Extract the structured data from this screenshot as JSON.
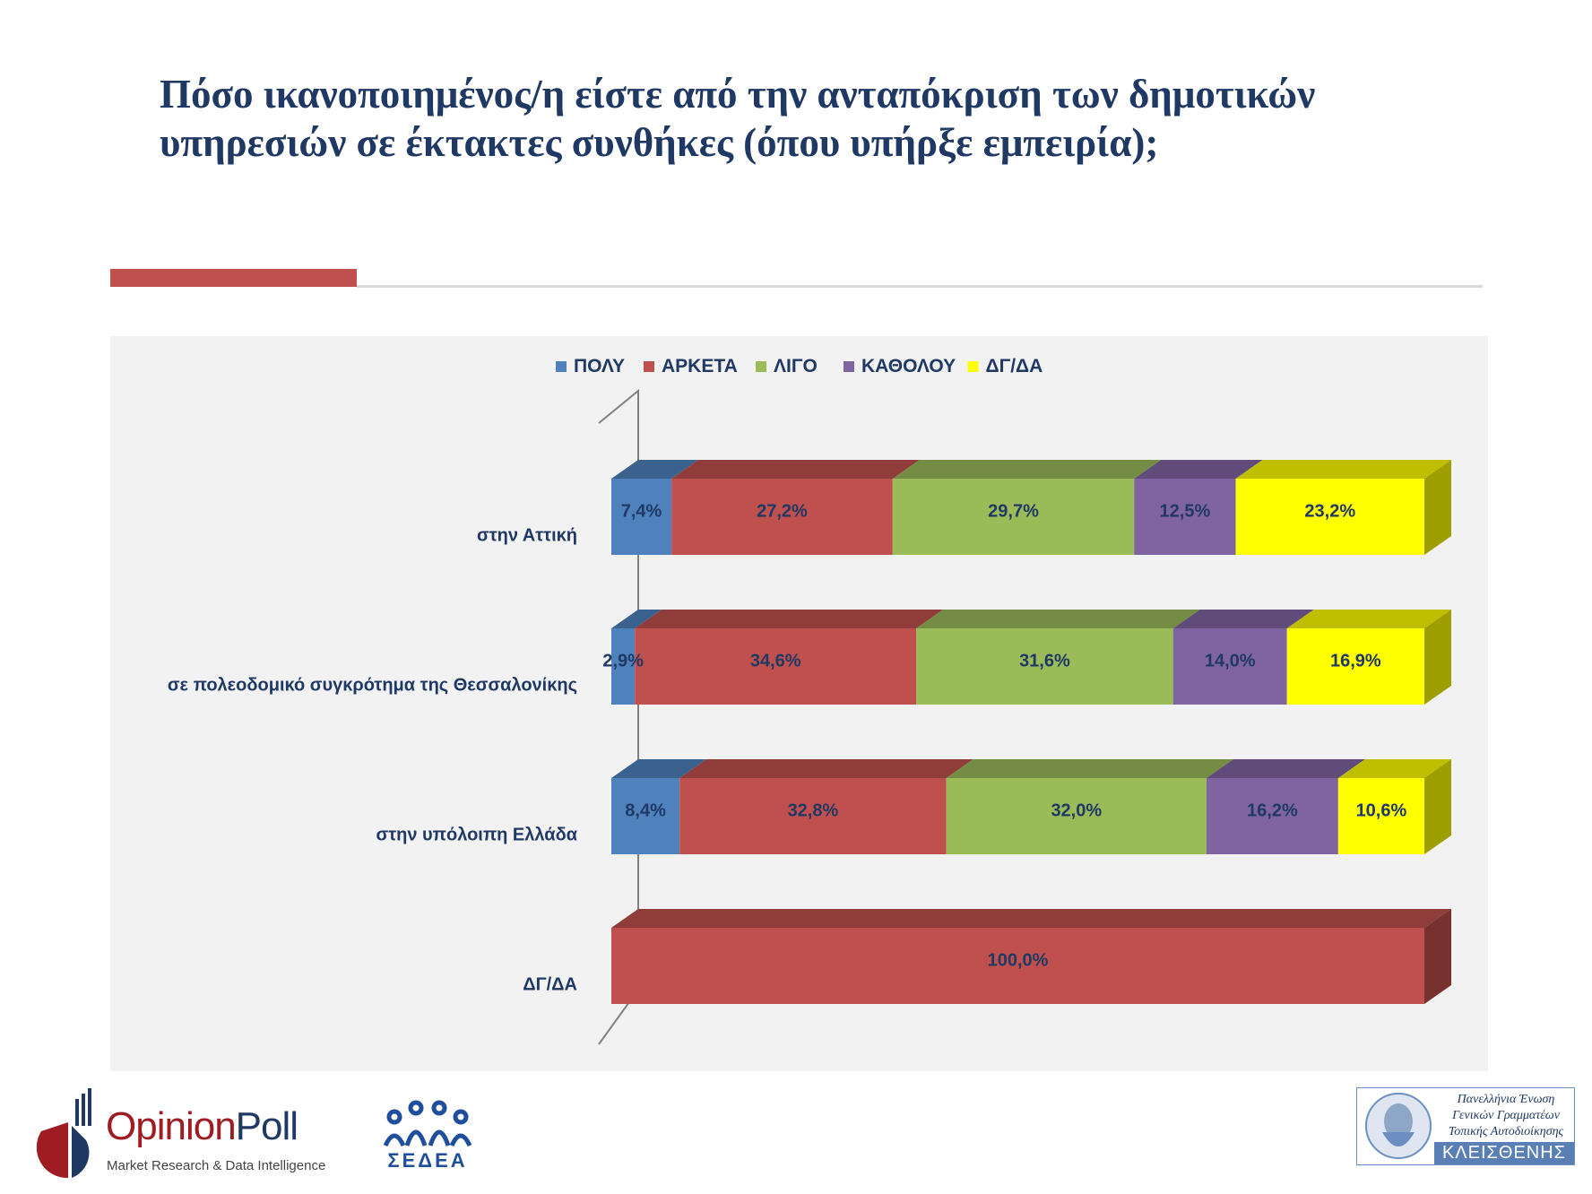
{
  "title_lines": [
    "Πόσο ικανοποιημένος/η είστε από την ανταπόκριση των δημοτικών",
    "υπηρεσιών σε έκτακτες συνθήκες (όπου υπήρξε εμπειρία);"
  ],
  "chart_data": {
    "type": "bar",
    "orientation": "horizontal",
    "stacked": "percent",
    "style_3d": true,
    "legend_position": "top",
    "categories": [
      "στην Αττική",
      "σε πολεοδομικό συγκρότημα της Θεσσαλονίκης",
      "στην υπόλοιπη Ελλάδα",
      "ΔΓ/ΔΑ"
    ],
    "series": [
      {
        "name": "ΠΟΛΥ",
        "color": "#4f81bd",
        "values": [
          7.4,
          2.9,
          8.4,
          0
        ],
        "labels": [
          "7,4%",
          "2,9%",
          "8,4%",
          ""
        ]
      },
      {
        "name": "ΑΡΚΕΤΑ",
        "color": "#c0504d",
        "values": [
          27.2,
          34.6,
          32.8,
          100.0
        ],
        "labels": [
          "27,2%",
          "34,6%",
          "32,8%",
          "100,0%"
        ]
      },
      {
        "name": "ΛΙΓΟ",
        "color": "#9bbb59",
        "values": [
          29.7,
          31.6,
          32.0,
          0
        ],
        "labels": [
          "29,7%",
          "31,6%",
          "32,0%",
          ""
        ]
      },
      {
        "name": "ΚΑΘΟΛΟΥ",
        "color": "#8064a2",
        "values": [
          12.5,
          14.0,
          16.2,
          0
        ],
        "labels": [
          "12,5%",
          "14,0%",
          "16,2%",
          ""
        ]
      },
      {
        "name": "ΔΓ/ΔΑ",
        "color": "#ffff00",
        "values": [
          23.2,
          16.9,
          10.6,
          0
        ],
        "labels": [
          "23,2%",
          "16,9%",
          "10,6%",
          ""
        ]
      }
    ]
  },
  "logos": {
    "opinionpoll": {
      "brand_a": "Opinion",
      "brand_b": "Poll",
      "tagline": "Market Research & Data Intelligence"
    },
    "sedea": {
      "text": "ΣΕΔΕΑ"
    },
    "kleisthenis": {
      "lines": [
        "Πανελλήνια Ένωση",
        "Γενικών Γραμματέων",
        "Τοπικής Αυτοδιοίκησης"
      ],
      "name": "ΚΛΕΙΣΘΕΝΗΣ"
    }
  }
}
